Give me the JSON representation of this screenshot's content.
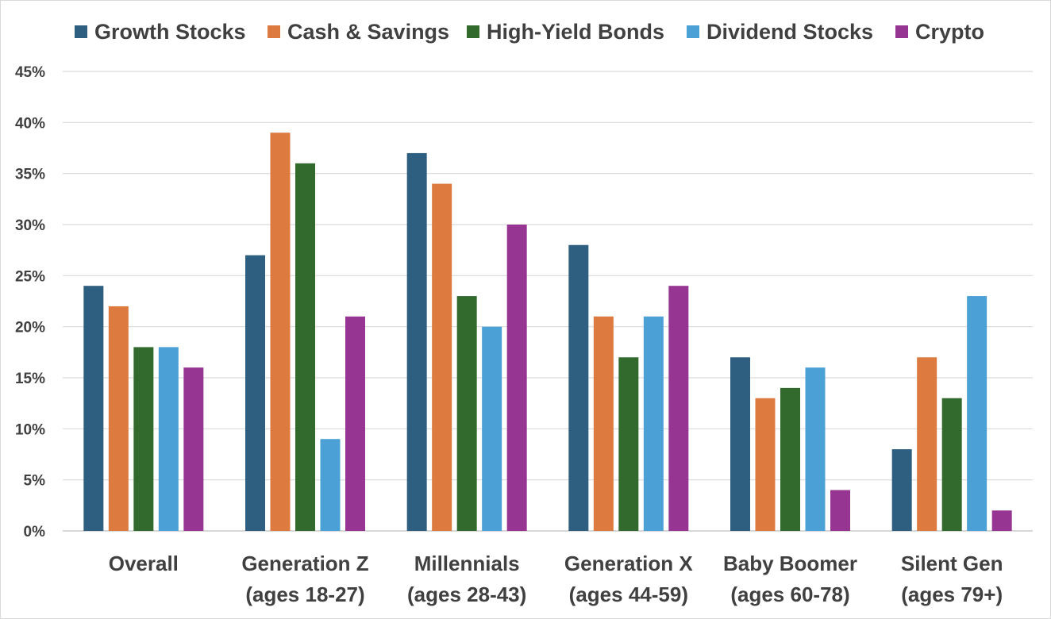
{
  "chart_data": {
    "type": "bar",
    "title": "",
    "xlabel": "",
    "ylabel": "",
    "ylim": [
      0,
      45
    ],
    "y_ticks": [
      0,
      5,
      10,
      15,
      20,
      25,
      30,
      35,
      40,
      45
    ],
    "y_tick_labels": [
      "0%",
      "5%",
      "10%",
      "15%",
      "20%",
      "25%",
      "30%",
      "35%",
      "40%",
      "45%"
    ],
    "grid": true,
    "legend_position": "top",
    "categories": [
      [
        "Overall"
      ],
      [
        "Generation Z",
        "(ages 18-27)"
      ],
      [
        "Millennials",
        "(ages 28-43)"
      ],
      [
        "Generation X",
        "(ages 44-59)"
      ],
      [
        "Baby Boomer",
        "(ages 60-78)"
      ],
      [
        "Silent Gen",
        "(ages 79+)"
      ]
    ],
    "series": [
      {
        "name": "Growth Stocks",
        "color": "#2e5f80",
        "values": [
          24,
          27,
          37,
          28,
          17,
          8
        ]
      },
      {
        "name": "Cash & Savings",
        "color": "#dc7a40",
        "values": [
          22,
          39,
          34,
          21,
          13,
          17
        ]
      },
      {
        "name": "High-Yield Bonds",
        "color": "#326a2e",
        "values": [
          18,
          36,
          23,
          17,
          14,
          13
        ]
      },
      {
        "name": "Dividend Stocks",
        "color": "#4ba1d6",
        "values": [
          18,
          9,
          20,
          21,
          16,
          23
        ]
      },
      {
        "name": "Crypto",
        "color": "#973592",
        "values": [
          16,
          21,
          30,
          24,
          4,
          2
        ]
      }
    ]
  },
  "colors": {
    "grid": "#d9d9d9",
    "axis": "#bfbfbf",
    "text": "#404040"
  }
}
